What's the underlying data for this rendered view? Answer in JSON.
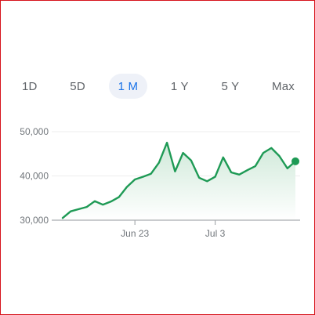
{
  "range_tabs": [
    {
      "label": "1D",
      "active": false
    },
    {
      "label": "5D",
      "active": false
    },
    {
      "label": "1 M",
      "active": true
    },
    {
      "label": "1 Y",
      "active": false
    },
    {
      "label": "5 Y",
      "active": false
    },
    {
      "label": "Max",
      "active": false
    }
  ],
  "colors": {
    "line": "#1e9a55",
    "fill_top": "#cfe9d9",
    "fill_bottom": "#ffffff",
    "active_tab_text": "#1a73e8",
    "active_tab_bg": "#eef1f8",
    "frame_border": "#d6141c"
  },
  "chart_data": {
    "type": "area",
    "y_ticks": [
      "50,000",
      "40,000",
      "30,000"
    ],
    "y_tick_values": [
      50000,
      40000,
      30000
    ],
    "x_tick_labels": [
      "Jun 23",
      "Jul 3"
    ],
    "x_tick_index": [
      9,
      19
    ],
    "ylim": [
      30000,
      52000
    ],
    "grid": true,
    "series": [
      {
        "values": [
          30500,
          32000,
          32500,
          33000,
          34300,
          33500,
          34200,
          35200,
          37500,
          39200,
          39800,
          40500,
          43000,
          47500,
          41000,
          45200,
          43500,
          39600,
          38800,
          39800,
          44200,
          40800,
          40300,
          41300,
          42200,
          45200,
          46300,
          44500,
          41700,
          43300
        ]
      }
    ]
  }
}
